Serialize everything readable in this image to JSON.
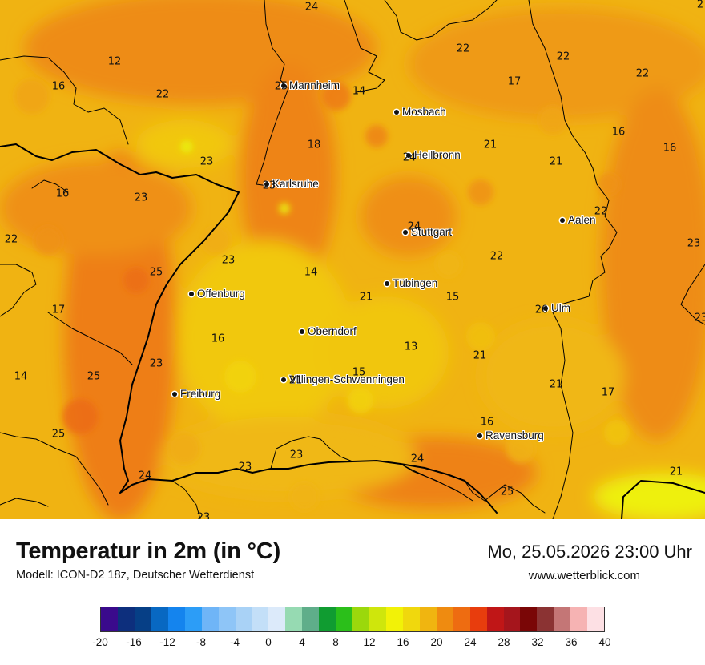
{
  "map": {
    "cities": [
      {
        "id": "mannheim",
        "name": "Mannheim"
      },
      {
        "id": "mosbach",
        "name": "Mosbach"
      },
      {
        "id": "heilbronn",
        "name": "Heilbronn"
      },
      {
        "id": "karlsruhe",
        "name": "Karlsruhe"
      },
      {
        "id": "stuttgart",
        "name": "Stuttgart"
      },
      {
        "id": "aalen",
        "name": "Aalen"
      },
      {
        "id": "tuebingen",
        "name": "Tübingen"
      },
      {
        "id": "offenburg",
        "name": "Offenburg"
      },
      {
        "id": "ulm",
        "name": "Ulm"
      },
      {
        "id": "oberndorf",
        "name": "Oberndorf"
      },
      {
        "id": "villingen",
        "name": "Villingen-Schwenningen"
      },
      {
        "id": "freiburg",
        "name": "Freiburg"
      },
      {
        "id": "ravensburg",
        "name": "Ravensburg"
      }
    ],
    "temperature_labels": [
      "24",
      "2",
      "12",
      "22",
      "22",
      "17",
      "22",
      "16",
      "22",
      "25",
      "14",
      "16",
      "18",
      "21",
      "16",
      "21",
      "23",
      "24",
      "23",
      "16",
      "23",
      "22",
      "22",
      "22",
      "23",
      "24",
      "23",
      "14",
      "25",
      "17",
      "21",
      "15",
      "23",
      "20",
      "13",
      "21",
      "16",
      "23",
      "21",
      "14",
      "15",
      "25",
      "21",
      "17",
      "16",
      "25",
      "24",
      "23",
      "23",
      "24",
      "25",
      "21",
      "23"
    ]
  },
  "footer": {
    "title": "Temperatur in 2m (in °C)",
    "model": "Modell: ICON-D2 18z, Deutscher Wetterdienst",
    "datetime": "Mo, 25.05.2026 23:00 Uhr",
    "website": "www.wetterblick.com"
  },
  "legend": {
    "tick_labels": [
      "-20",
      "-16",
      "-12",
      "-8",
      "-4",
      "0",
      "4",
      "8",
      "12",
      "16",
      "20",
      "24",
      "28",
      "32",
      "36",
      "40"
    ],
    "colors": [
      "#3a0a8c",
      "#0d2f7d",
      "#063f86",
      "#0868c2",
      "#1484ee",
      "#2c9df7",
      "#6fb5f7",
      "#8ec5f7",
      "#a9d2f6",
      "#c3dff8",
      "#dceafa",
      "#96dab2",
      "#5fae8a",
      "#109c31",
      "#2bbf1a",
      "#9bd80c",
      "#cfe60c",
      "#f2f207",
      "#f0d80d",
      "#f0b510",
      "#ef8b10",
      "#ee6c11",
      "#e83d0d",
      "#c01617",
      "#a5151c",
      "#7a0606",
      "#8b3333",
      "#c47676",
      "#f6b3b3",
      "#fde0e4"
    ]
  }
}
